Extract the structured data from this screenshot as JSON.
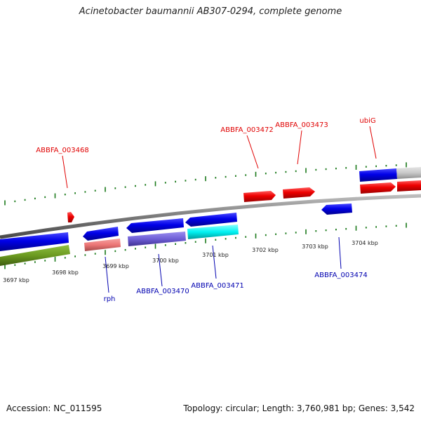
{
  "title": "Acinetobacter baumannii AB307-0294, complete genome",
  "footer": {
    "accession": "Accession: NC_011595",
    "summary": "Topology: circular; Length: 3,760,981 bp; Genes: 3,542"
  },
  "colors": {
    "backbone": "#7f7f7f",
    "tick": "#1b7a1b",
    "label_forward": "#e00000",
    "label_reverse": "#0000b0"
  },
  "scale_labels": [
    "3697 kbp",
    "3698 kbp",
    "3699 kbp",
    "3700 kbp",
    "3701 kbp",
    "3702 kbp",
    "3703 kbp",
    "3704 kbp"
  ],
  "gene_labels": {
    "forward": [
      "ABBFA_003468",
      "ABBFA_003472",
      "ABBFA_003473",
      "ubiG"
    ],
    "reverse": [
      "rph",
      "ABBFA_003470",
      "ABBFA_003471",
      "ABBFA_003474"
    ]
  }
}
